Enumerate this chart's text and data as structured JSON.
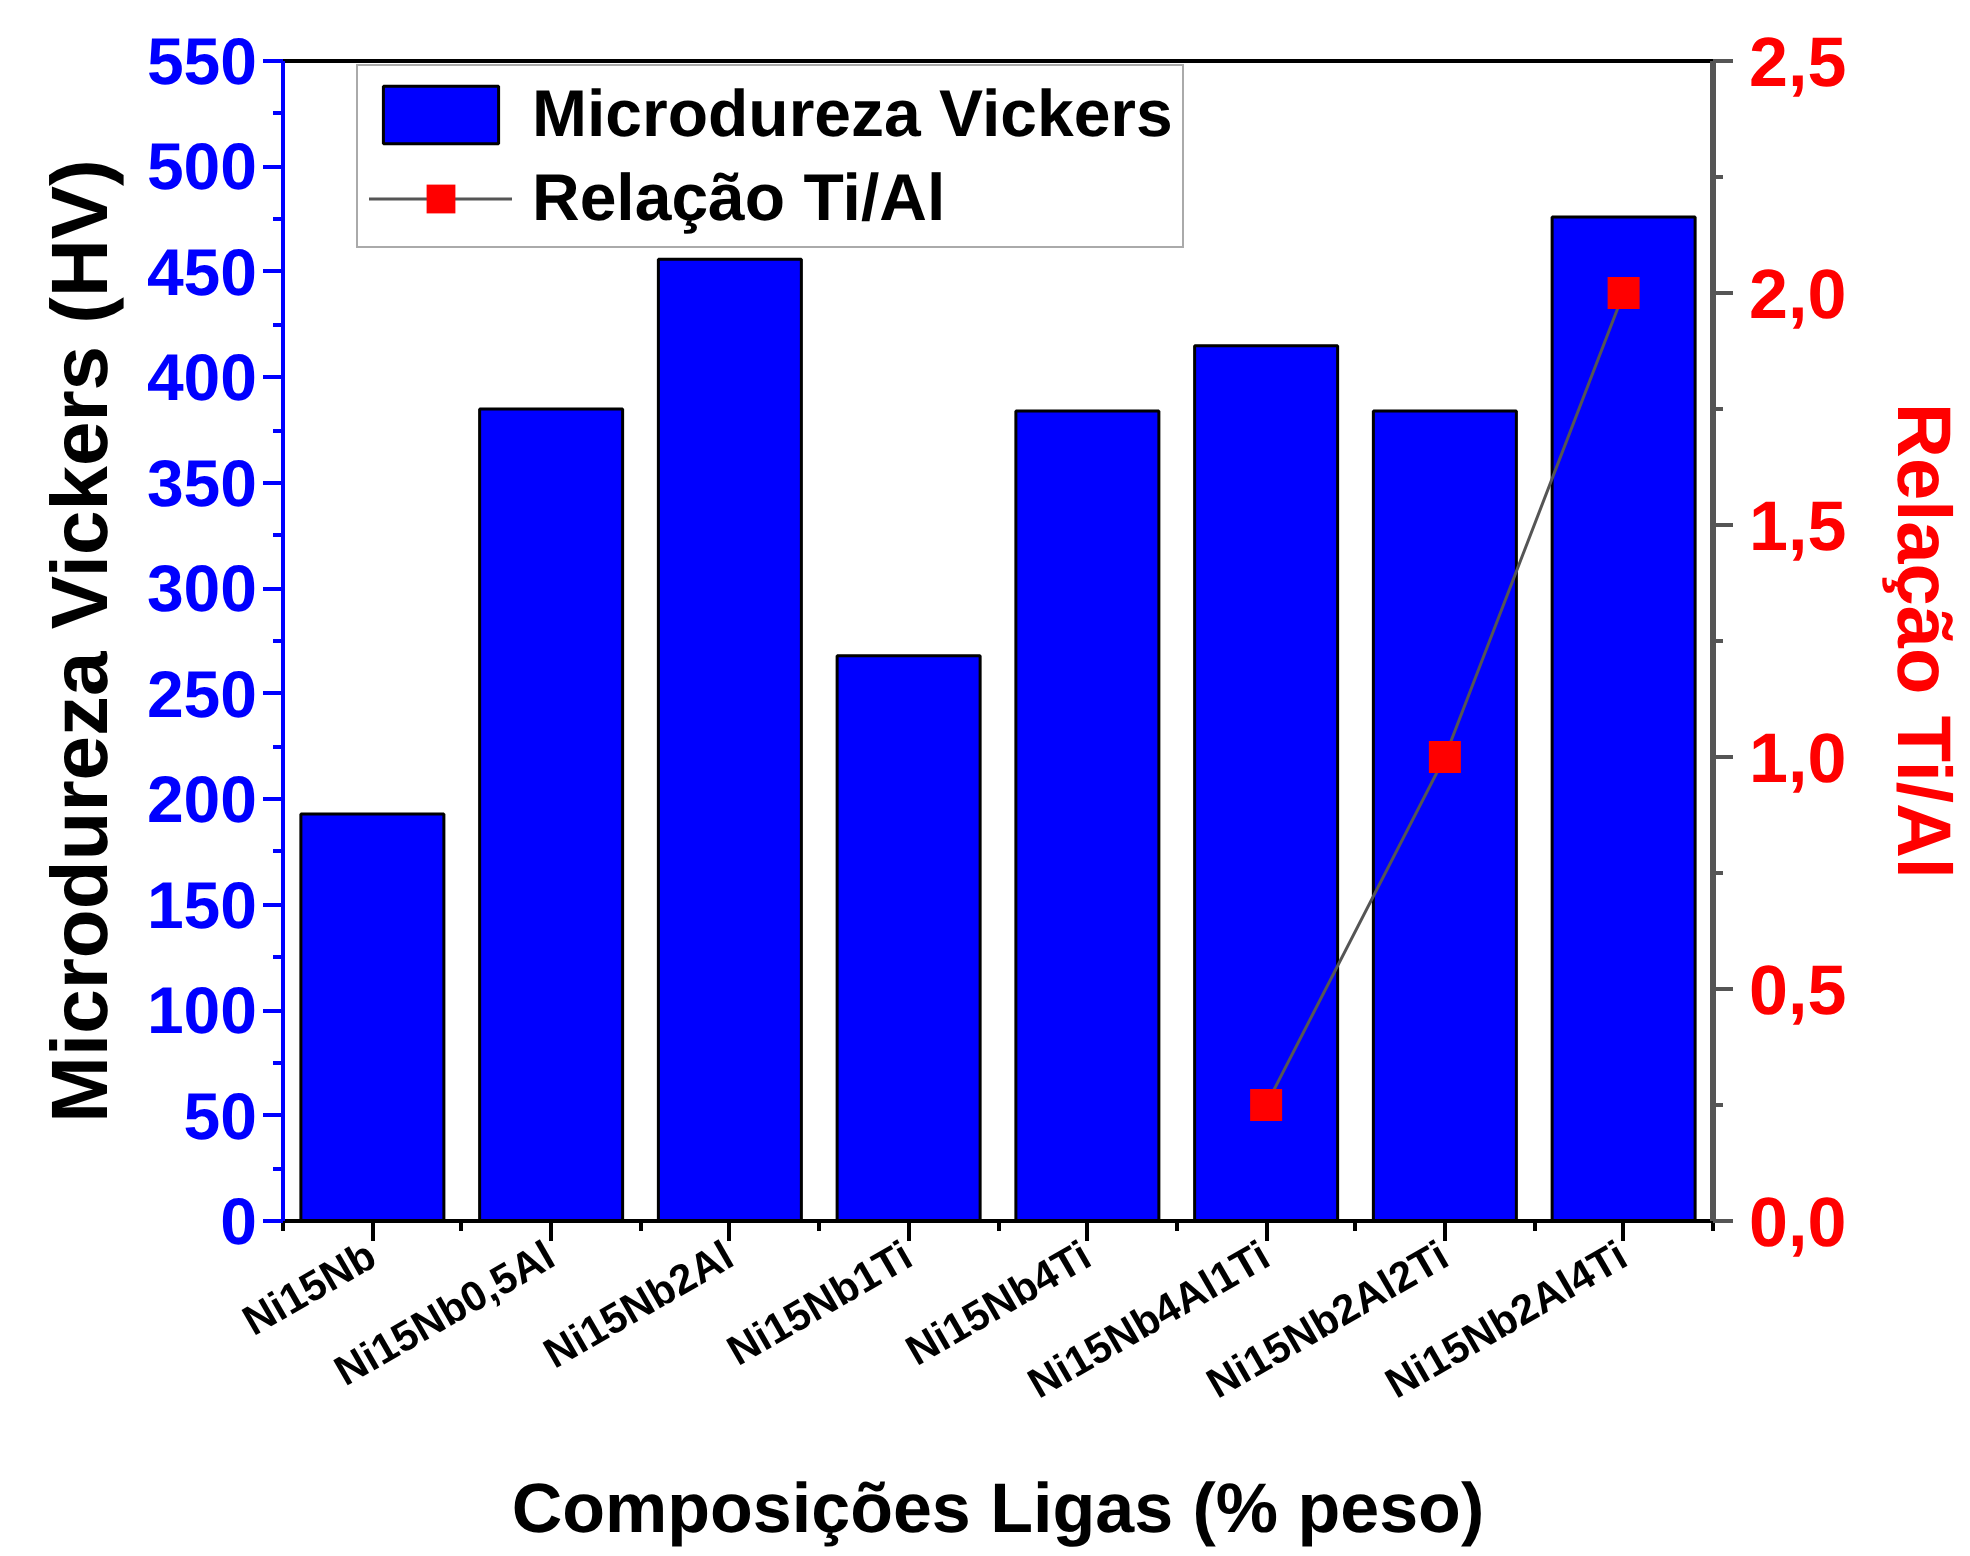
{
  "chart_data": {
    "type": "bar",
    "xlabel": "Composições Ligas (% peso)",
    "ylabel": "Microdureza Vickers (HV)",
    "y2label": "Relação Ti/Al",
    "categories": [
      "Ni15Nb",
      "Ni15Nb0,5Al",
      "Ni15Nb2Al",
      "Ni15Nb1Ti",
      "Ni15Nb4Ti",
      "Ni15Nb4Al1Ti",
      "Ni15Nb2Al2Ti",
      "Ni15Nb2Al4Ti"
    ],
    "series": [
      {
        "name": "Microdureza Vickers",
        "color": "#0000ff",
        "values": [
          193,
          385,
          456,
          268,
          384,
          415,
          384,
          476
        ]
      },
      {
        "name": "Relação Ti/Al",
        "type": "line",
        "axis": "y2",
        "color": "#ff0000",
        "values": [
          null,
          null,
          null,
          null,
          null,
          0.25,
          1.0,
          2.0
        ]
      }
    ],
    "ylim": [
      0,
      550
    ],
    "yticks": [
      0,
      50,
      100,
      150,
      200,
      250,
      300,
      350,
      400,
      450,
      500,
      550
    ],
    "y2lim": [
      0,
      2.5
    ],
    "y2ticks": [
      {
        "value": 0,
        "label": "0,0"
      },
      {
        "value": 0.5,
        "label": "0,5"
      },
      {
        "value": 1.0,
        "label": "1,0"
      },
      {
        "value": 1.5,
        "label": "1,5"
      },
      {
        "value": 2.0,
        "label": "2,0"
      },
      {
        "value": 2.5,
        "label": "2,5"
      }
    ],
    "legend": "top left",
    "marker": "square",
    "line_style": "solid"
  }
}
